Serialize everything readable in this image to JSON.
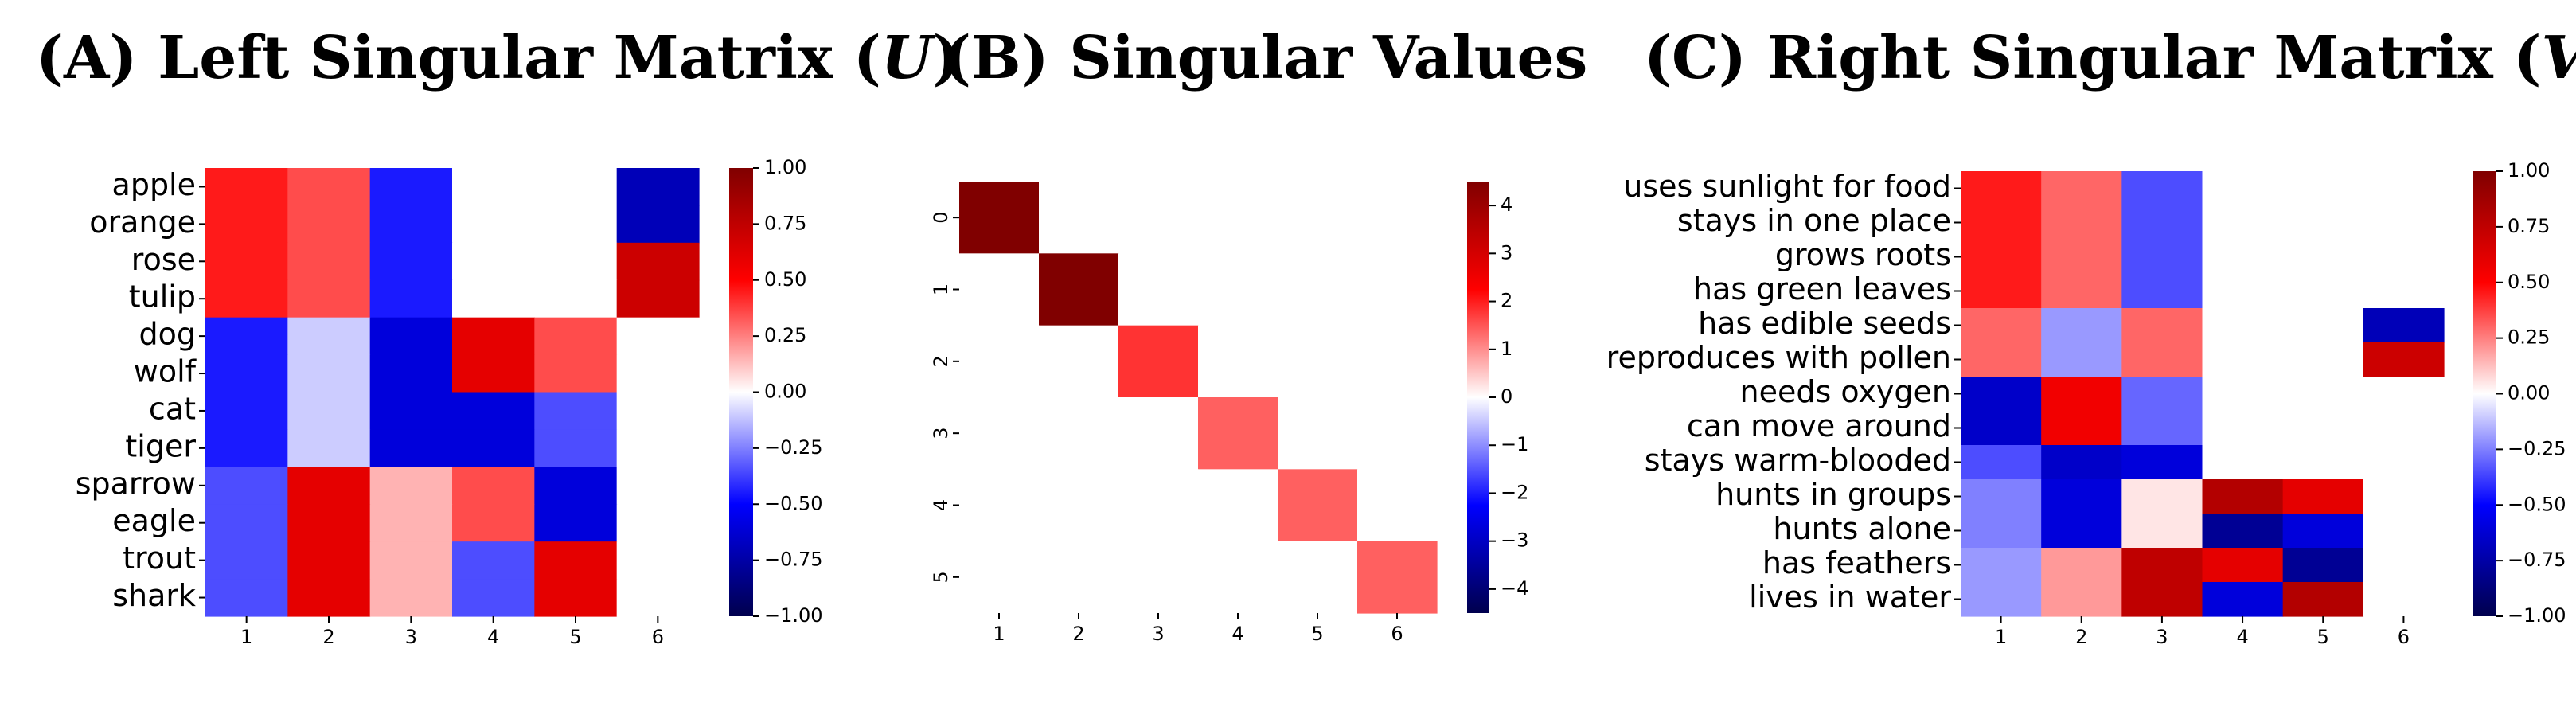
{
  "panels": [
    {
      "title_prefix": "(A) Left Singular Matrix (",
      "title_var": "U",
      "title_suffix": ")"
    },
    {
      "title_prefix": "(B) Singular Values",
      "title_var": "",
      "title_suffix": ""
    },
    {
      "title_prefix": "(C) Right Singular Matrix (",
      "title_var": "V",
      "title_suffix": ")"
    }
  ],
  "colors": {
    "colormap": "seismic",
    "low": "#00004c",
    "mid": "#ffffff",
    "high": "#7f0000"
  },
  "chart_data": [
    {
      "type": "heatmap",
      "title": "(A) Left Singular Matrix (U)",
      "rows": [
        "apple",
        "orange",
        "rose",
        "tulip",
        "dog",
        "wolf",
        "cat",
        "tiger",
        "sparrow",
        "eagle",
        "trout",
        "shark"
      ],
      "cols": [
        "1",
        "2",
        "3",
        "4",
        "5",
        "6"
      ],
      "values": [
        [
          0.45,
          0.35,
          -0.45,
          0.0,
          0.0,
          -0.7
        ],
        [
          0.45,
          0.35,
          -0.45,
          0.0,
          0.0,
          -0.7
        ],
        [
          0.45,
          0.35,
          -0.45,
          0.0,
          0.0,
          0.7
        ],
        [
          0.45,
          0.35,
          -0.45,
          0.0,
          0.0,
          0.7
        ],
        [
          -0.45,
          -0.1,
          -0.6,
          0.6,
          0.35,
          0.0
        ],
        [
          -0.45,
          -0.1,
          -0.6,
          0.6,
          0.35,
          0.0
        ],
        [
          -0.45,
          -0.1,
          -0.6,
          -0.6,
          -0.35,
          0.0
        ],
        [
          -0.45,
          -0.1,
          -0.6,
          -0.6,
          -0.35,
          0.0
        ],
        [
          -0.35,
          0.6,
          0.15,
          0.35,
          -0.6,
          0.0
        ],
        [
          -0.35,
          0.6,
          0.15,
          0.35,
          -0.6,
          0.0
        ],
        [
          -0.35,
          0.6,
          0.15,
          -0.35,
          0.6,
          0.0
        ],
        [
          -0.35,
          0.6,
          0.15,
          -0.35,
          0.6,
          0.0
        ]
      ],
      "colorbar": {
        "range": [
          -1.0,
          1.0
        ],
        "ticks": [
          "1.00",
          "0.75",
          "0.50",
          "0.25",
          "0.00",
          "−0.25",
          "−0.50",
          "−0.75",
          "−1.00"
        ]
      }
    },
    {
      "type": "heatmap",
      "title": "(B) Singular Values",
      "rows": [
        "0",
        "1",
        "2",
        "3",
        "4",
        "5"
      ],
      "cols": [
        "1",
        "2",
        "3",
        "4",
        "5",
        "6"
      ],
      "values": [
        [
          4.5,
          0,
          0,
          0,
          0,
          0
        ],
        [
          0,
          4.5,
          0,
          0,
          0,
          0
        ],
        [
          0,
          0,
          1.8,
          0,
          0,
          0
        ],
        [
          0,
          0,
          0,
          1.4,
          0,
          0
        ],
        [
          0,
          0,
          0,
          0,
          1.4,
          0
        ],
        [
          0,
          0,
          0,
          0,
          0,
          1.4
        ]
      ],
      "colorbar": {
        "range": [
          -4.5,
          4.5
        ],
        "ticks": [
          "4",
          "3",
          "2",
          "1",
          "0",
          "−1",
          "−2",
          "−3",
          "−4"
        ]
      }
    },
    {
      "type": "heatmap",
      "title": "(C) Right Singular Matrix (V)",
      "rows": [
        "uses sunlight for food",
        "stays in one place",
        "grows roots",
        "has green leaves",
        "has edible seeds",
        "reproduces with pollen",
        "needs oxygen",
        "can move around",
        "stays warm-blooded",
        "hunts in groups",
        "hunts alone",
        "has feathers",
        "lives in water"
      ],
      "cols": [
        "1",
        "2",
        "3",
        "4",
        "5",
        "6"
      ],
      "values": [
        [
          0.45,
          0.3,
          -0.35,
          0.0,
          0.0,
          0.0
        ],
        [
          0.45,
          0.3,
          -0.35,
          0.0,
          0.0,
          0.0
        ],
        [
          0.45,
          0.3,
          -0.35,
          0.0,
          0.0,
          0.0
        ],
        [
          0.45,
          0.3,
          -0.35,
          0.0,
          0.0,
          0.0
        ],
        [
          0.3,
          -0.2,
          0.3,
          0.0,
          0.0,
          -0.7
        ],
        [
          0.3,
          -0.2,
          0.3,
          0.0,
          0.0,
          0.7
        ],
        [
          -0.65,
          0.55,
          -0.3,
          0.0,
          0.0,
          0.0
        ],
        [
          -0.65,
          0.55,
          -0.3,
          0.0,
          0.0,
          0.0
        ],
        [
          -0.35,
          -0.65,
          -0.6,
          0.0,
          0.0,
          0.0
        ],
        [
          -0.25,
          -0.6,
          0.05,
          0.8,
          0.6,
          0.0
        ],
        [
          -0.25,
          -0.6,
          0.05,
          -0.8,
          -0.6,
          0.0
        ],
        [
          -0.2,
          0.2,
          0.75,
          0.6,
          -0.8,
          0.0
        ],
        [
          -0.2,
          0.2,
          0.75,
          -0.6,
          0.8,
          0.0
        ]
      ],
      "colorbar": {
        "range": [
          -1.0,
          1.0
        ],
        "ticks": [
          "1.00",
          "0.75",
          "0.50",
          "0.25",
          "0.00",
          "−0.25",
          "−0.50",
          "−0.75",
          "−1.00"
        ]
      }
    }
  ]
}
